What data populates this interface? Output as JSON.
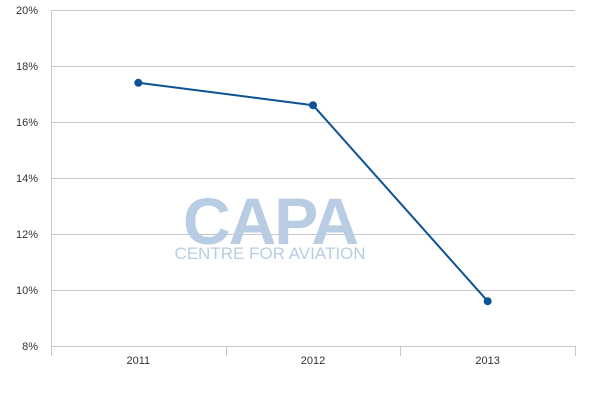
{
  "chart_data": {
    "type": "line",
    "x": [
      "2011",
      "2012",
      "2013"
    ],
    "series": [
      {
        "values": [
          17.4,
          16.6,
          9.6
        ],
        "color": "#0b5394"
      }
    ],
    "ylim": [
      8,
      20
    ],
    "yticks": [
      8,
      10,
      12,
      14,
      16,
      18,
      20
    ],
    "ytick_labels": [
      "8%",
      "10%",
      "12%",
      "14%",
      "16%",
      "18%",
      "20%"
    ],
    "xtick_labels": [
      "2011",
      "2012",
      "2013"
    ],
    "grid": true,
    "gridline_color": "#c8c8c8",
    "title": "",
    "xlabel": "",
    "ylabel": ""
  },
  "watermark": {
    "logo": "CAPA",
    "tagline": "CENTRE FOR AVIATION",
    "color": "#b8cde3"
  }
}
